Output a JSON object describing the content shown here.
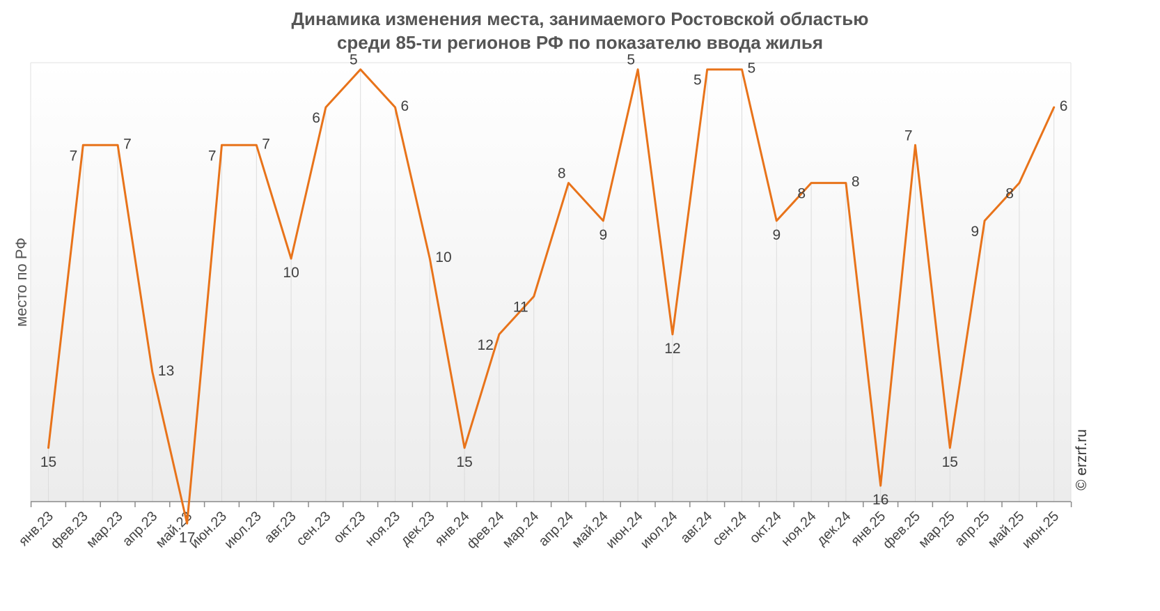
{
  "chart_data": {
    "type": "line",
    "title": "Динамика изменения места, занимаемого Ростовской областью",
    "subtitle": "среди 85-ти регионов РФ по показателю ввода жилья",
    "xlabel": "",
    "ylabel": "место по РФ",
    "y_axis_inverted": true,
    "ylim": [
      19,
      4
    ],
    "grid": "vertical",
    "legend": "none",
    "watermark": "© erzrf.ru",
    "line_color": "#E8731A",
    "categories": [
      "янв.23",
      "фев.23",
      "мар.23",
      "апр.23",
      "май.23",
      "июн.23",
      "июл.23",
      "авг.23",
      "сен.23",
      "окт.23",
      "ноя.23",
      "дек.23",
      "янв.24",
      "фев.24",
      "мар.24",
      "апр.24",
      "май.24",
      "июн.24",
      "июл.24",
      "авг.24",
      "сен.24",
      "окт.24",
      "ноя.24",
      "дек.24",
      "янв.25",
      "фев.25",
      "мар.25",
      "апр.25",
      "май.25",
      "июн.25"
    ],
    "series": [
      {
        "values": [
          15,
          7,
          7,
          13,
          17,
          7,
          7,
          10,
          6,
          5,
          6,
          10,
          15,
          12,
          11,
          8,
          9,
          5,
          12,
          5,
          5,
          9,
          8,
          8,
          16,
          7,
          15,
          9,
          8,
          6
        ]
      }
    ]
  }
}
